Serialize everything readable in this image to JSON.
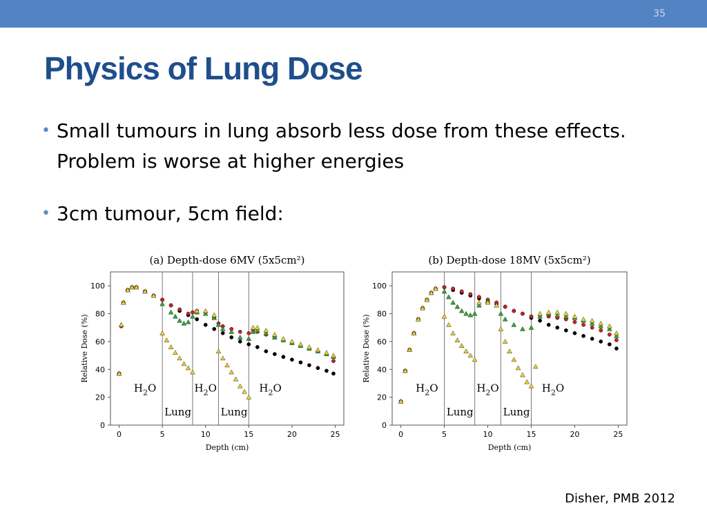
{
  "slide": {
    "number": "35",
    "title": "Physics of Lung Dose",
    "bullets": [
      "Small tumours in lung absorb less dose from these effects. Problem is worse at higher energies",
      "3cm tumour, 5cm field:"
    ],
    "citation": "Disher, PMB 2012",
    "bullet_color": "#5a8ac6",
    "title_color": "#1f4e8c",
    "bar_color": "#5283c2"
  },
  "chart_data": [
    {
      "type": "scatter",
      "panel_label": "(a)",
      "title": "Depth-dose 6MV (5x5cm²)",
      "xlabel": "Depth (cm)",
      "ylabel": "Relative Dose (%)",
      "xlim": [
        -1,
        26
      ],
      "ylim": [
        0,
        110
      ],
      "xticks": [
        0,
        5,
        10,
        15,
        20,
        25
      ],
      "yticks": [
        0,
        20,
        40,
        60,
        80,
        100
      ],
      "boundaries": [
        5,
        8.5,
        11.5,
        15
      ],
      "region_labels": [
        {
          "text": "H2O",
          "x": 3.0,
          "y": 24
        },
        {
          "text": "H2O",
          "x": 10.0,
          "y": 24
        },
        {
          "text": "H2O",
          "x": 17.5,
          "y": 24
        },
        {
          "text": "Lung",
          "x": 6.8,
          "y": 7
        },
        {
          "text": "Lung",
          "x": 13.3,
          "y": 7
        }
      ],
      "series": [
        {
          "color": "#000000",
          "marker": "circle",
          "x": [
            0,
            0.25,
            0.5,
            1.0,
            1.5,
            2,
            3,
            4,
            5,
            6,
            7,
            8,
            9,
            10,
            11,
            12,
            13,
            14,
            15,
            16,
            17,
            18,
            19,
            20,
            21,
            22,
            23,
            24,
            24.8
          ],
          "y": [
            37,
            71,
            88,
            97,
            99,
            99,
            96,
            93,
            90,
            86,
            82,
            79,
            76,
            72,
            69,
            66,
            63,
            60,
            58,
            56,
            53,
            51,
            49,
            47,
            45,
            43,
            41,
            39,
            37
          ]
        },
        {
          "color": "#d42020",
          "marker": "circle",
          "x": [
            0,
            0.25,
            0.5,
            1.0,
            1.5,
            2,
            3,
            4,
            5,
            6,
            7,
            8,
            8.5,
            9,
            10,
            11,
            11.5,
            12,
            13,
            14,
            15,
            15.5,
            16,
            17,
            18,
            19,
            20,
            21,
            22,
            23,
            24,
            24.8
          ],
          "y": [
            37,
            71,
            88,
            97,
            99,
            99,
            96,
            93,
            90,
            86,
            83,
            80,
            81,
            82,
            81,
            77,
            73,
            71,
            69,
            67,
            66,
            68,
            67,
            65,
            63,
            61,
            59,
            57,
            55,
            53,
            51,
            46
          ]
        },
        {
          "color": "#2ea82e",
          "marker": "triangle",
          "x": [
            0,
            0.25,
            0.5,
            1.0,
            1.5,
            2,
            3,
            4,
            5,
            6,
            6.5,
            7,
            7.5,
            8,
            8.5,
            9,
            10,
            11,
            11.5,
            12,
            13,
            14,
            15,
            15.5,
            16,
            17,
            18,
            19,
            20,
            21,
            22,
            23,
            24,
            24.8
          ],
          "y": [
            37,
            72,
            88,
            97,
            99,
            99,
            96,
            93,
            87,
            81,
            78,
            75,
            73,
            74,
            78,
            81,
            80,
            77,
            72,
            69,
            67,
            63,
            62,
            67,
            68,
            66,
            63,
            61,
            59,
            57,
            55,
            53,
            51,
            49
          ]
        },
        {
          "color": "#ecd12b",
          "marker": "triangle",
          "x": [
            0,
            0.25,
            0.5,
            1.0,
            1.5,
            2,
            3,
            4,
            5,
            5.5,
            6,
            6.5,
            7,
            7.5,
            8,
            8.5,
            9,
            10,
            11,
            11.5,
            12,
            12.5,
            13,
            13.5,
            14,
            14.5,
            15,
            15.5,
            16,
            17,
            18,
            19,
            20,
            21,
            22,
            23,
            24,
            24.8
          ],
          "y": [
            37,
            72,
            88,
            97,
            99,
            99,
            96,
            93,
            66,
            61,
            56,
            52,
            48,
            44,
            41,
            38,
            82,
            82,
            79,
            53,
            48,
            43,
            38,
            33,
            28,
            24,
            20,
            70,
            70,
            68,
            65,
            62,
            60,
            58,
            56,
            54,
            52,
            50
          ]
        }
      ]
    },
    {
      "type": "scatter",
      "panel_label": "(b)",
      "title": "Depth-dose 18MV (5x5cm²)",
      "xlabel": "Depth (cm)",
      "ylabel": "Relative Dose (%)",
      "xlim": [
        -1,
        26
      ],
      "ylim": [
        0,
        110
      ],
      "xticks": [
        0,
        5,
        10,
        15,
        20,
        25
      ],
      "yticks": [
        0,
        20,
        40,
        60,
        80,
        100
      ],
      "boundaries": [
        5,
        8.5,
        11.5,
        15
      ],
      "region_labels": [
        {
          "text": "H2O",
          "x": 3.0,
          "y": 24
        },
        {
          "text": "H2O",
          "x": 10.0,
          "y": 24
        },
        {
          "text": "H2O",
          "x": 17.5,
          "y": 24
        },
        {
          "text": "Lung",
          "x": 6.8,
          "y": 7
        },
        {
          "text": "Lung",
          "x": 13.3,
          "y": 7
        }
      ],
      "series": [
        {
          "color": "#000000",
          "marker": "circle",
          "x": [
            0,
            0.5,
            1,
            1.5,
            2,
            2.5,
            3,
            3.5,
            4,
            5,
            6,
            7,
            8,
            9,
            10,
            11,
            12,
            13,
            14,
            15,
            16,
            17,
            18,
            19,
            20,
            21,
            22,
            23,
            24,
            24.8
          ],
          "y": [
            17,
            39,
            54,
            66,
            76,
            84,
            90,
            95,
            98,
            99,
            97,
            95,
            93,
            91,
            89,
            87,
            85,
            82,
            80,
            77,
            75,
            72,
            70,
            68,
            66,
            64,
            62,
            60,
            58,
            55
          ]
        },
        {
          "color": "#d42020",
          "marker": "circle",
          "x": [
            0,
            0.5,
            1,
            1.5,
            2,
            2.5,
            3,
            3.5,
            4,
            5,
            6,
            7,
            8,
            9,
            10,
            11,
            12,
            13,
            14,
            15,
            16,
            17,
            18,
            19,
            20,
            21,
            22,
            23,
            24,
            24.8
          ],
          "y": [
            17,
            39,
            54,
            66,
            76,
            84,
            90,
            95,
            98,
            99,
            98,
            96,
            94,
            92,
            90,
            88,
            85,
            82,
            80,
            78,
            79,
            78,
            77,
            76,
            74,
            72,
            70,
            68,
            65,
            61
          ]
        },
        {
          "color": "#2ea82e",
          "marker": "triangle",
          "x": [
            0,
            0.5,
            1,
            1.5,
            2,
            2.5,
            3,
            3.5,
            4,
            5,
            5.5,
            6,
            6.5,
            7,
            7.5,
            8,
            8.5,
            9,
            10,
            11,
            11.5,
            12,
            13,
            14,
            15,
            16,
            17,
            18,
            19,
            20,
            21,
            22,
            23,
            24,
            24.8
          ],
          "y": [
            17,
            39,
            54,
            66,
            76,
            84,
            90,
            95,
            98,
            96,
            92,
            88,
            85,
            82,
            80,
            79,
            80,
            86,
            89,
            86,
            80,
            76,
            72,
            69,
            70,
            78,
            80,
            79,
            78,
            77,
            75,
            73,
            71,
            69,
            64
          ]
        },
        {
          "color": "#ecd12b",
          "marker": "triangle",
          "x": [
            0,
            0.5,
            1,
            1.5,
            2,
            2.5,
            3,
            3.5,
            4,
            5,
            5.5,
            6,
            6.5,
            7,
            7.5,
            8,
            8.5,
            9,
            10,
            11,
            11.5,
            12,
            12.5,
            13,
            13.5,
            14,
            14.5,
            15,
            15.5,
            16,
            17,
            18,
            19,
            20,
            21,
            22,
            23,
            24,
            24.8
          ],
          "y": [
            17,
            39,
            54,
            66,
            76,
            84,
            90,
            95,
            98,
            78,
            72,
            66,
            61,
            57,
            53,
            50,
            47,
            88,
            88,
            86,
            69,
            60,
            53,
            47,
            41,
            36,
            31,
            28,
            42,
            80,
            81,
            81,
            80,
            78,
            76,
            75,
            73,
            71,
            66
          ]
        }
      ]
    }
  ]
}
